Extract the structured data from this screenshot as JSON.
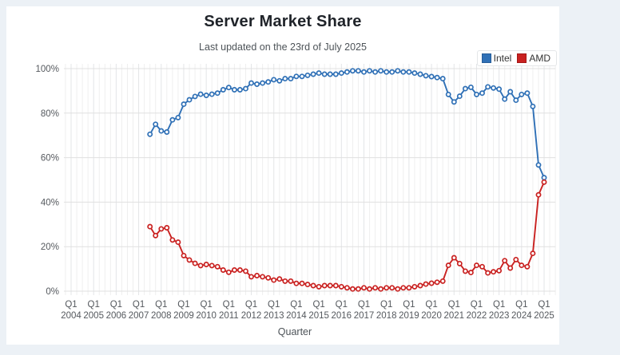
{
  "header": {
    "title": "Server Market Share",
    "subtitle": "Last updated on the 23rd of July 2025"
  },
  "chart_data": {
    "type": "line",
    "title": "Server Market Share",
    "subtitle": "Last updated on the 23rd of July 2025",
    "xlabel": "Quarter",
    "ylabel": "",
    "ylim": [
      0,
      100
    ],
    "y_tick_labels": [
      "0%",
      "20%",
      "40%",
      "60%",
      "80%",
      "100%"
    ],
    "x_tick_quarter_label": "Q1",
    "x_tick_years": [
      2004,
      2005,
      2006,
      2007,
      2008,
      2009,
      2010,
      2011,
      2012,
      2013,
      2014,
      2015,
      2016,
      2017,
      2018,
      2019,
      2020,
      2021,
      2022,
      2023,
      2024,
      2025
    ],
    "start_quarter": "Q3 2007",
    "quarters_per_year": 4,
    "grid": "vertical line per quarter, horizontal every 20%",
    "legend_position": "top-right",
    "marker_style": "open-circle",
    "series": [
      {
        "name": "Intel",
        "color": "#2f70b6",
        "values": [
          70.5,
          75.0,
          72.0,
          71.5,
          77.0,
          78.0,
          84.0,
          86.0,
          87.5,
          88.5,
          88.0,
          88.5,
          89.0,
          90.5,
          91.5,
          90.5,
          90.5,
          91.0,
          93.5,
          93.0,
          93.5,
          94.0,
          95.0,
          94.5,
          95.5,
          95.5,
          96.5,
          96.5,
          97.0,
          97.5,
          98.0,
          97.5,
          97.5,
          97.5,
          98.0,
          98.5,
          99.0,
          99.0,
          98.5,
          99.0,
          98.5,
          99.0,
          98.5,
          98.5,
          99.0,
          98.5,
          98.5,
          98.0,
          97.5,
          96.8,
          96.4,
          96.0,
          95.5,
          88.4,
          85.0,
          87.6,
          91.0,
          91.6,
          88.4,
          89.0,
          91.8,
          91.3,
          90.8,
          86.3,
          89.6,
          85.8,
          88.4,
          89.0,
          83.0,
          56.7,
          51.0
        ]
      },
      {
        "name": "AMD",
        "color": "#c92120",
        "values": [
          29.0,
          25.0,
          28.0,
          28.5,
          23.0,
          22.0,
          16.0,
          14.0,
          12.5,
          11.5,
          12.0,
          11.5,
          11.0,
          9.5,
          8.5,
          9.5,
          9.5,
          9.0,
          6.5,
          7.0,
          6.5,
          6.0,
          5.0,
          5.5,
          4.5,
          4.5,
          3.5,
          3.5,
          3.0,
          2.5,
          2.0,
          2.5,
          2.5,
          2.5,
          2.0,
          1.5,
          1.0,
          1.0,
          1.5,
          1.0,
          1.5,
          1.0,
          1.5,
          1.5,
          1.0,
          1.5,
          1.5,
          2.0,
          2.5,
          3.2,
          3.6,
          4.0,
          4.5,
          11.6,
          15.0,
          12.4,
          9.0,
          8.4,
          11.6,
          11.0,
          8.2,
          8.7,
          9.2,
          13.7,
          10.4,
          14.2,
          11.6,
          11.0,
          17.0,
          43.3,
          49.0
        ]
      }
    ]
  }
}
